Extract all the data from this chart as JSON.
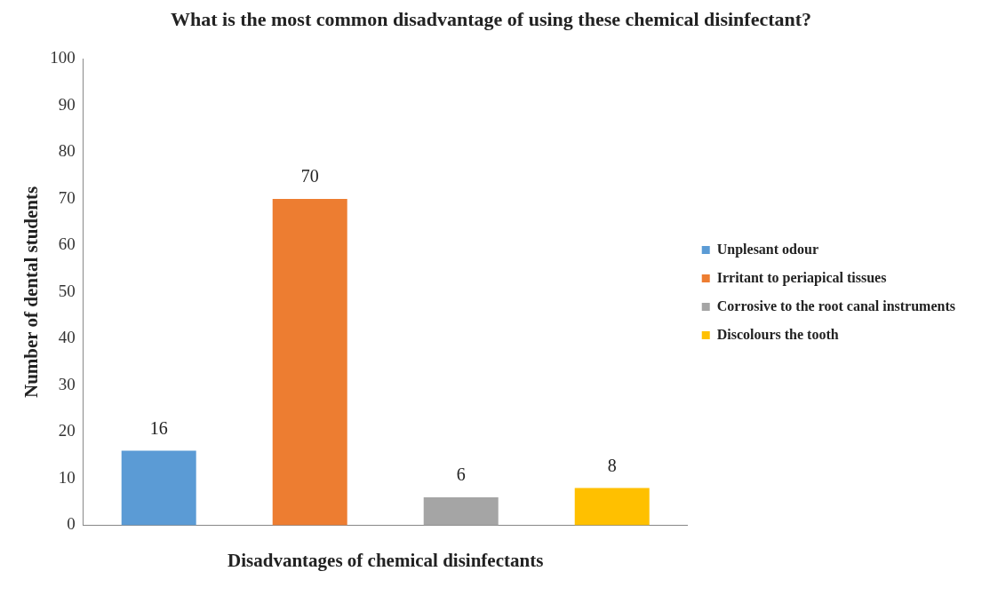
{
  "chart_data": {
    "type": "bar",
    "title": "What is the most common disadvantage of using these chemical disinfectant?",
    "xlabel": "Disadvantages of chemical disinfectants",
    "ylabel": "Number of dental students",
    "categories": [
      null,
      null,
      null,
      null
    ],
    "series": [
      {
        "name": "Unplesant odour",
        "color": "#5b9bd5",
        "values": [
          16,
          null,
          null,
          null
        ]
      },
      {
        "name": "Irritant to periapical tissues",
        "color": "#ed7d31",
        "values": [
          null,
          70,
          null,
          null
        ]
      },
      {
        "name": "Corrosive to the root canal instruments",
        "color": "#a5a5a5",
        "values": [
          null,
          null,
          6,
          null
        ]
      },
      {
        "name": "Discolours the tooth",
        "color": "#ffc000",
        "values": [
          null,
          null,
          null,
          8
        ]
      }
    ],
    "ylim": [
      0,
      100
    ],
    "yticks": [
      0,
      10,
      20,
      30,
      40,
      50,
      60,
      70,
      80,
      90,
      100
    ],
    "grid": false,
    "legend": "right",
    "data_labels": true
  }
}
